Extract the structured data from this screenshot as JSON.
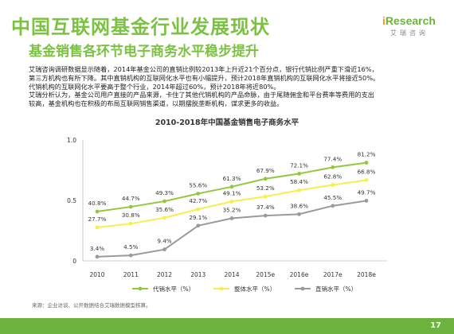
{
  "header": {
    "title": "中国互联网基金行业发展现状",
    "subtitle": "基金销售各环节电子商务水平稳步提升"
  },
  "logo": {
    "brand_i": "i",
    "brand_rest": "Research",
    "brand_cn": "艾瑞咨询"
  },
  "body": {
    "lines": [
      "艾瑞咨询调研数据显示随着，2014年基金公司的直销比例较2013年上升近21个百分点，银行代销比例严重下滑近16%，",
      "第三方机构也有所下降。其中直销机构的互联网化水平也有小幅提升，预计2018年直销机构的互联网化水平将接近50%。",
      "代销机构的互联网化水平要高于整个行业，2014年超过60%，预计2018年将近80%。",
      "艾瑞分析认为，基金公司用户直接的产品来源，卡住了其他代销机构的产品命脉，由于尾随佣金和平台费率等费用的支出",
      "较高，基金机构也在积极的布局互联网销售渠道，以期摆脱垄断机构，谋求更多的收益。"
    ]
  },
  "chart_data": {
    "type": "line",
    "title": "2010-2018年中国基金销售电子商务水平",
    "categories": [
      "2010",
      "2011",
      "2012",
      "2013",
      "2014",
      "2015e",
      "2016e",
      "2017e",
      "2018e"
    ],
    "ylim": [
      0,
      1.0
    ],
    "yticks": [
      0,
      0.5,
      1.0
    ],
    "ytick_labels": [
      "0",
      "0.5",
      "1.0"
    ],
    "grid": false,
    "legend_position": "bottom",
    "series": [
      {
        "name": "代销水平（%）",
        "color": "#92c83e",
        "values": [
          0.408,
          0.447,
          0.493,
          0.556,
          0.613,
          0.679,
          0.721,
          0.774,
          0.812
        ],
        "labels": [
          "40.8%",
          "44.7%",
          "49.3%",
          "55.6%",
          "61.3%",
          "67.9%",
          "72.1%",
          "77.4%",
          "81.2%"
        ]
      },
      {
        "name": "整体水平（%）",
        "color": "#f7ef4a",
        "values": [
          0.277,
          0.308,
          0.356,
          0.427,
          0.491,
          0.532,
          0.584,
          0.628,
          0.668
        ],
        "labels": [
          "27.7%",
          "30.8%",
          "35.6%",
          "42.7%",
          "49.1%",
          "53.2%",
          "58.4%",
          "62.8%",
          "66.8%"
        ]
      },
      {
        "name": "直销水平（%）",
        "color": "#9a9a9a",
        "values": [
          0.034,
          0.045,
          0.094,
          0.291,
          0.352,
          0.374,
          0.386,
          0.455,
          0.497
        ],
        "labels": [
          "3.4%",
          "4.5%",
          "9.4%",
          "29.1%",
          "35.2%",
          "37.4%",
          "38.6%",
          "45.5%",
          "49.7%"
        ]
      }
    ]
  },
  "footer": {
    "source": "来源：企业访谈、公开数据结合艾瑞数据模型核算。",
    "page_number": "17"
  }
}
